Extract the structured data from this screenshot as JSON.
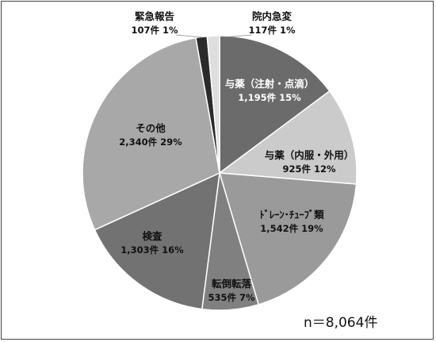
{
  "chart_data": {
    "type": "pie",
    "total_label": "n＝8,064件",
    "slices": [
      {
        "name": "与薬（注射・点滴）",
        "count": 1195,
        "percent": 15,
        "value_label": "1,195件 15%",
        "color": "#6b6b6b",
        "text_color": "#ffffff"
      },
      {
        "name": "与薬（内服・外用）",
        "count": 925,
        "percent": 12,
        "value_label": "925件 12%",
        "color": "#cbcbcb",
        "text_color": "#111111"
      },
      {
        "name": "ﾄﾞﾚｰﾝ･ﾁｭｰﾌﾞ類",
        "count": 1542,
        "percent": 19,
        "value_label": "1,542件 19%",
        "color": "#9a9a9a",
        "text_color": "#111111"
      },
      {
        "name": "転倒転落",
        "count": 535,
        "percent": 7,
        "value_label": "535件 7%",
        "color": "#808080",
        "text_color": "#111111"
      },
      {
        "name": "検査",
        "count": 1303,
        "percent": 16,
        "value_label": "1,303件 16%",
        "color": "#727272",
        "text_color": "#111111"
      },
      {
        "name": "その他",
        "count": 2340,
        "percent": 29,
        "value_label": "2,340件 29%",
        "color": "#a8a8a8",
        "text_color": "#111111"
      },
      {
        "name": "緊急報告",
        "count": 107,
        "percent": 1,
        "value_label": "107件 1%",
        "color": "#2b2b2b",
        "text_color": "#111111"
      },
      {
        "name": "院内急変",
        "count": 117,
        "percent": 1,
        "value_label": "117件 1%",
        "color": "#dedede",
        "text_color": "#111111"
      }
    ]
  }
}
